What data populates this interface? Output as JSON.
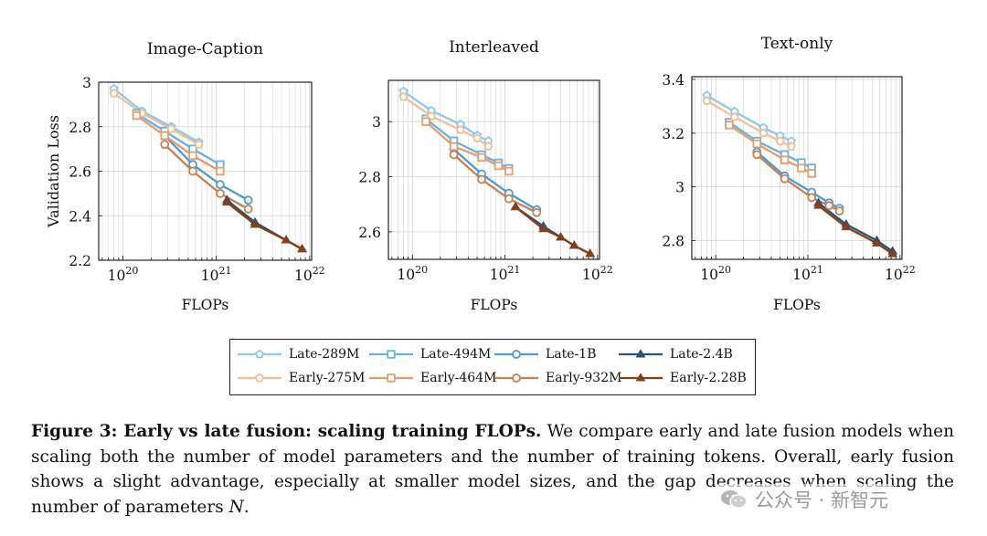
{
  "colors": {
    "late_289": "#8fc6ea",
    "late_494": "#6ab0e3",
    "late_1b": "#4d98d6",
    "late_24": "#2c4f74",
    "early_275": "#efbf98",
    "early_464": "#e59c6a",
    "early_932": "#c9804f",
    "early_228": "#85401c",
    "grid": "#d4d4d4",
    "frame": "#111111"
  },
  "chart_data": [
    {
      "type": "line",
      "title": "Image-Caption",
      "xlabel": "FLOPs",
      "ylabel": "Validation Loss",
      "xscale": "log",
      "xlim": [
        5.5e+19,
        1.05e+22
      ],
      "ylim": [
        2.2,
        3.0
      ],
      "xticks": [
        1e+20,
        1e+21,
        1e+22
      ],
      "xtick_labels": [
        {
          "base": "10",
          "exp": "20"
        },
        {
          "base": "10",
          "exp": "21"
        },
        {
          "base": "10",
          "exp": "22"
        }
      ],
      "yticks": [
        2.2,
        2.4,
        2.6,
        2.8,
        3.0
      ],
      "ytick_labels": [
        "2.2",
        "2.4",
        "2.6",
        "2.8",
        "3"
      ],
      "grid": true,
      "series": [
        {
          "name": "Late-289M",
          "color_key": "late_289",
          "marker": "pentagon",
          "x": [
            8e+19,
            1.6e+20,
            3.3e+20,
            6.5e+20
          ],
          "y": [
            2.97,
            2.87,
            2.8,
            2.73
          ]
        },
        {
          "name": "Late-494M",
          "color_key": "late_494",
          "marker": "square",
          "x": [
            1.4e+20,
            2.8e+20,
            5.6e+20,
            1.1e+21
          ],
          "y": [
            2.86,
            2.78,
            2.7,
            2.63
          ]
        },
        {
          "name": "Late-1B",
          "color_key": "late_1b",
          "marker": "circle",
          "x": [
            2.8e+20,
            5.6e+20,
            1.1e+21,
            2.2e+21
          ],
          "y": [
            2.76,
            2.63,
            2.54,
            2.47
          ]
        },
        {
          "name": "Late-2.4B",
          "color_key": "late_24",
          "marker": "triangle",
          "x": [
            1.3e+21,
            2.6e+21,
            5.6e+21,
            8.3e+21
          ],
          "y": [
            2.47,
            2.37,
            2.29,
            2.25
          ]
        },
        {
          "name": "Early-275M",
          "color_key": "early_275",
          "marker": "pentagon",
          "x": [
            8e+19,
            1.6e+20,
            3.3e+20,
            6.5e+20
          ],
          "y": [
            2.95,
            2.86,
            2.79,
            2.72
          ]
        },
        {
          "name": "Early-464M",
          "color_key": "early_464",
          "marker": "square",
          "x": [
            1.4e+20,
            2.8e+20,
            5.6e+20,
            1.1e+21
          ],
          "y": [
            2.85,
            2.76,
            2.67,
            2.6
          ]
        },
        {
          "name": "Early-932M",
          "color_key": "early_932",
          "marker": "circle",
          "x": [
            2.8e+20,
            5.6e+20,
            1.1e+21,
            2.2e+21
          ],
          "y": [
            2.72,
            2.6,
            2.5,
            2.43
          ]
        },
        {
          "name": "Early-2.28B",
          "color_key": "early_228",
          "marker": "triangle",
          "x": [
            1.3e+21,
            2.6e+21,
            5.6e+21,
            8.3e+21
          ],
          "y": [
            2.46,
            2.36,
            2.29,
            2.25
          ]
        }
      ]
    },
    {
      "type": "line",
      "title": "Interleaved",
      "xlabel": "FLOPs",
      "ylabel": "",
      "xscale": "log",
      "xlim": [
        5.5e+19,
        1.05e+22
      ],
      "ylim": [
        2.5,
        3.15
      ],
      "xticks": [
        1e+20,
        1e+21,
        1e+22
      ],
      "xtick_labels": [
        {
          "base": "10",
          "exp": "20"
        },
        {
          "base": "10",
          "exp": "21"
        },
        {
          "base": "10",
          "exp": "22"
        }
      ],
      "yticks": [
        2.6,
        2.8,
        3.0
      ],
      "ytick_labels": [
        "2.6",
        "2.8",
        "3"
      ],
      "grid": true,
      "series": [
        {
          "name": "Late-289M",
          "color_key": "late_289",
          "marker": "pentagon",
          "x": [
            8e+19,
            1.6e+20,
            3.3e+20,
            5e+20,
            6.6e+20
          ],
          "y": [
            3.11,
            3.04,
            2.99,
            2.95,
            2.93
          ]
        },
        {
          "name": "Late-494M",
          "color_key": "late_494",
          "marker": "square",
          "x": [
            1.4e+20,
            2.8e+20,
            5.6e+20,
            8.5e+20,
            1.1e+21
          ],
          "y": [
            3.01,
            2.93,
            2.88,
            2.85,
            2.83
          ]
        },
        {
          "name": "Late-1B",
          "color_key": "late_1b",
          "marker": "circle",
          "x": [
            2.8e+20,
            5.6e+20,
            1.1e+21,
            2.2e+21
          ],
          "y": [
            2.9,
            2.81,
            2.74,
            2.68
          ]
        },
        {
          "name": "Late-2.4B",
          "color_key": "late_24",
          "marker": "triangle",
          "x": [
            1.3e+21,
            2.6e+21,
            4e+21,
            5.6e+21,
            8.3e+21
          ],
          "y": [
            2.69,
            2.62,
            2.58,
            2.55,
            2.52
          ]
        },
        {
          "name": "Early-275M",
          "color_key": "early_275",
          "marker": "pentagon",
          "x": [
            8e+19,
            1.6e+20,
            3.3e+20,
            5e+20,
            6.6e+20
          ],
          "y": [
            3.09,
            3.02,
            2.97,
            2.94,
            2.91
          ]
        },
        {
          "name": "Early-464M",
          "color_key": "early_464",
          "marker": "square",
          "x": [
            1.4e+20,
            2.8e+20,
            5.6e+20,
            8.5e+20,
            1.1e+21
          ],
          "y": [
            3.0,
            2.91,
            2.87,
            2.84,
            2.82
          ]
        },
        {
          "name": "Early-932M",
          "color_key": "early_932",
          "marker": "circle",
          "x": [
            2.8e+20,
            5.6e+20,
            1.1e+21,
            2.2e+21
          ],
          "y": [
            2.88,
            2.79,
            2.72,
            2.67
          ]
        },
        {
          "name": "Early-2.28B",
          "color_key": "early_228",
          "marker": "triangle",
          "x": [
            1.3e+21,
            2.6e+21,
            4e+21,
            5.6e+21,
            8.3e+21
          ],
          "y": [
            2.69,
            2.61,
            2.58,
            2.55,
            2.52
          ]
        }
      ]
    },
    {
      "type": "line",
      "title": "Text-only",
      "xlabel": "FLOPs",
      "ylabel": "",
      "xscale": "log",
      "xlim": [
        5.5e+19,
        1.05e+22
      ],
      "ylim": [
        2.73,
        3.41
      ],
      "xticks": [
        1e+20,
        1e+21,
        1e+22
      ],
      "xtick_labels": [
        {
          "base": "10",
          "exp": "20"
        },
        {
          "base": "10",
          "exp": "21"
        },
        {
          "base": "10",
          "exp": "22"
        }
      ],
      "yticks": [
        2.8,
        3.0,
        3.2,
        3.4
      ],
      "ytick_labels": [
        "2.8",
        "3",
        "3.2",
        "3.4"
      ],
      "grid": true,
      "series": [
        {
          "name": "Late-289M",
          "color_key": "late_289",
          "marker": "pentagon",
          "x": [
            8e+19,
            1.6e+20,
            3.3e+20,
            5e+20,
            6.6e+20
          ],
          "y": [
            3.34,
            3.28,
            3.22,
            3.19,
            3.17
          ]
        },
        {
          "name": "Late-494M",
          "color_key": "late_494",
          "marker": "square",
          "x": [
            1.4e+20,
            2.8e+20,
            5.6e+20,
            8.5e+20,
            1.1e+21
          ],
          "y": [
            3.24,
            3.17,
            3.12,
            3.09,
            3.07
          ]
        },
        {
          "name": "Late-1B",
          "color_key": "late_1b",
          "marker": "circle",
          "x": [
            2.8e+20,
            5.6e+20,
            1.1e+21,
            1.7e+21,
            2.2e+21
          ],
          "y": [
            3.13,
            3.04,
            2.98,
            2.94,
            2.92
          ]
        },
        {
          "name": "Late-2.4B",
          "color_key": "late_24",
          "marker": "triangle",
          "x": [
            1.3e+21,
            2.6e+21,
            5.6e+21,
            8.3e+21
          ],
          "y": [
            2.94,
            2.86,
            2.8,
            2.76
          ]
        },
        {
          "name": "Early-275M",
          "color_key": "early_275",
          "marker": "pentagon",
          "x": [
            8e+19,
            1.6e+20,
            3.3e+20,
            5e+20,
            6.6e+20
          ],
          "y": [
            3.32,
            3.26,
            3.2,
            3.17,
            3.15
          ]
        },
        {
          "name": "Early-464M",
          "color_key": "early_464",
          "marker": "square",
          "x": [
            1.4e+20,
            2.8e+20,
            5.6e+20,
            8.5e+20,
            1.1e+21
          ],
          "y": [
            3.23,
            3.16,
            3.1,
            3.07,
            3.05
          ]
        },
        {
          "name": "Early-932M",
          "color_key": "early_932",
          "marker": "circle",
          "x": [
            2.8e+20,
            5.6e+20,
            1.1e+21,
            1.7e+21,
            2.2e+21
          ],
          "y": [
            3.12,
            3.03,
            2.96,
            2.93,
            2.91
          ]
        },
        {
          "name": "Early-2.28B",
          "color_key": "early_228",
          "marker": "triangle",
          "x": [
            1.3e+21,
            2.6e+21,
            5.6e+21,
            8.3e+21
          ],
          "y": [
            2.93,
            2.85,
            2.79,
            2.75
          ]
        }
      ]
    }
  ],
  "legend": {
    "placement": "bottom-center",
    "items": [
      {
        "label": "Late-289M",
        "color_key": "late_289",
        "marker": "pentagon"
      },
      {
        "label": "Late-494M",
        "color_key": "late_494",
        "marker": "square"
      },
      {
        "label": "Late-1B",
        "color_key": "late_1b",
        "marker": "circle"
      },
      {
        "label": "Late-2.4B",
        "color_key": "late_24",
        "marker": "triangle"
      },
      {
        "label": "Early-275M",
        "color_key": "early_275",
        "marker": "pentagon"
      },
      {
        "label": "Early-464M",
        "color_key": "early_464",
        "marker": "square"
      },
      {
        "label": "Early-932M",
        "color_key": "early_932",
        "marker": "circle"
      },
      {
        "label": "Early-2.28B",
        "color_key": "early_228",
        "marker": "triangle"
      }
    ]
  },
  "caption": {
    "label": "Figure 3: Early vs late fusion: scaling training FLOPs.",
    "text_before_var": " We compare early and late fusion models when scaling both the number of model parameters and the number of training tokens. Overall, early fusion shows a slight advantage, especially at smaller model sizes, and the gap decreases when scaling the number of parameters ",
    "var": "N",
    "text_after_var": "."
  },
  "watermark": {
    "text": "公众号 · 新智元",
    "icon": "wechat-icon"
  }
}
